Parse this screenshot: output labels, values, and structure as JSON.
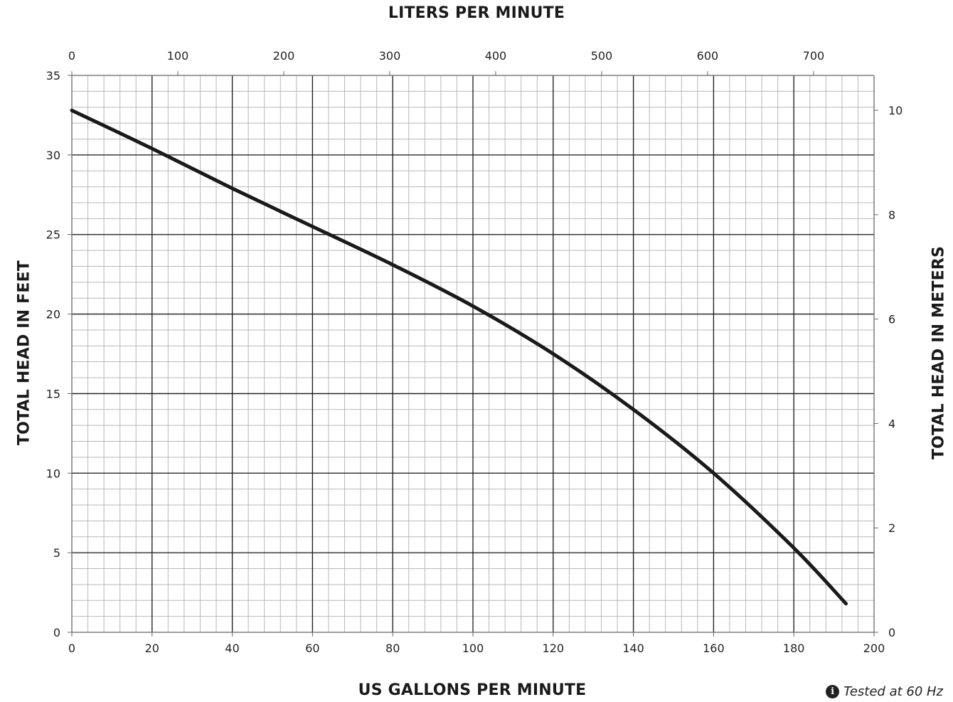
{
  "chart_data": {
    "type": "line",
    "title_top": "LITERS PER MINUTE",
    "xlabel": "US GALLONS PER MINUTE",
    "ylabel": "TOTAL HEAD IN FEET",
    "ylabel_right": "TOTAL HEAD IN METERS",
    "xlim": [
      0,
      200
    ],
    "ylim": [
      0,
      35
    ],
    "x_ticks": [
      "0",
      "20",
      "40",
      "60",
      "80",
      "100",
      "120",
      "140",
      "160",
      "180",
      "200"
    ],
    "y_ticks": [
      "0",
      "5",
      "10",
      "15",
      "20",
      "25",
      "30",
      "35"
    ],
    "top_ticks": [
      "0",
      "100",
      "200",
      "300",
      "400",
      "500",
      "600",
      "700"
    ],
    "right_ticks": [
      "0",
      "2",
      "4",
      "6",
      "8",
      "10"
    ],
    "grid": true,
    "series": [
      {
        "x": [
          0,
          20,
          40,
          60,
          80,
          100,
          120,
          140,
          160,
          180,
          193
        ],
        "y": [
          32.8,
          30.4,
          27.9,
          25.5,
          23.1,
          20.5,
          17.5,
          14.0,
          10.0,
          5.3,
          1.8
        ]
      }
    ]
  },
  "note": {
    "icon": "info-icon",
    "text": "Tested at 60 Hz"
  }
}
